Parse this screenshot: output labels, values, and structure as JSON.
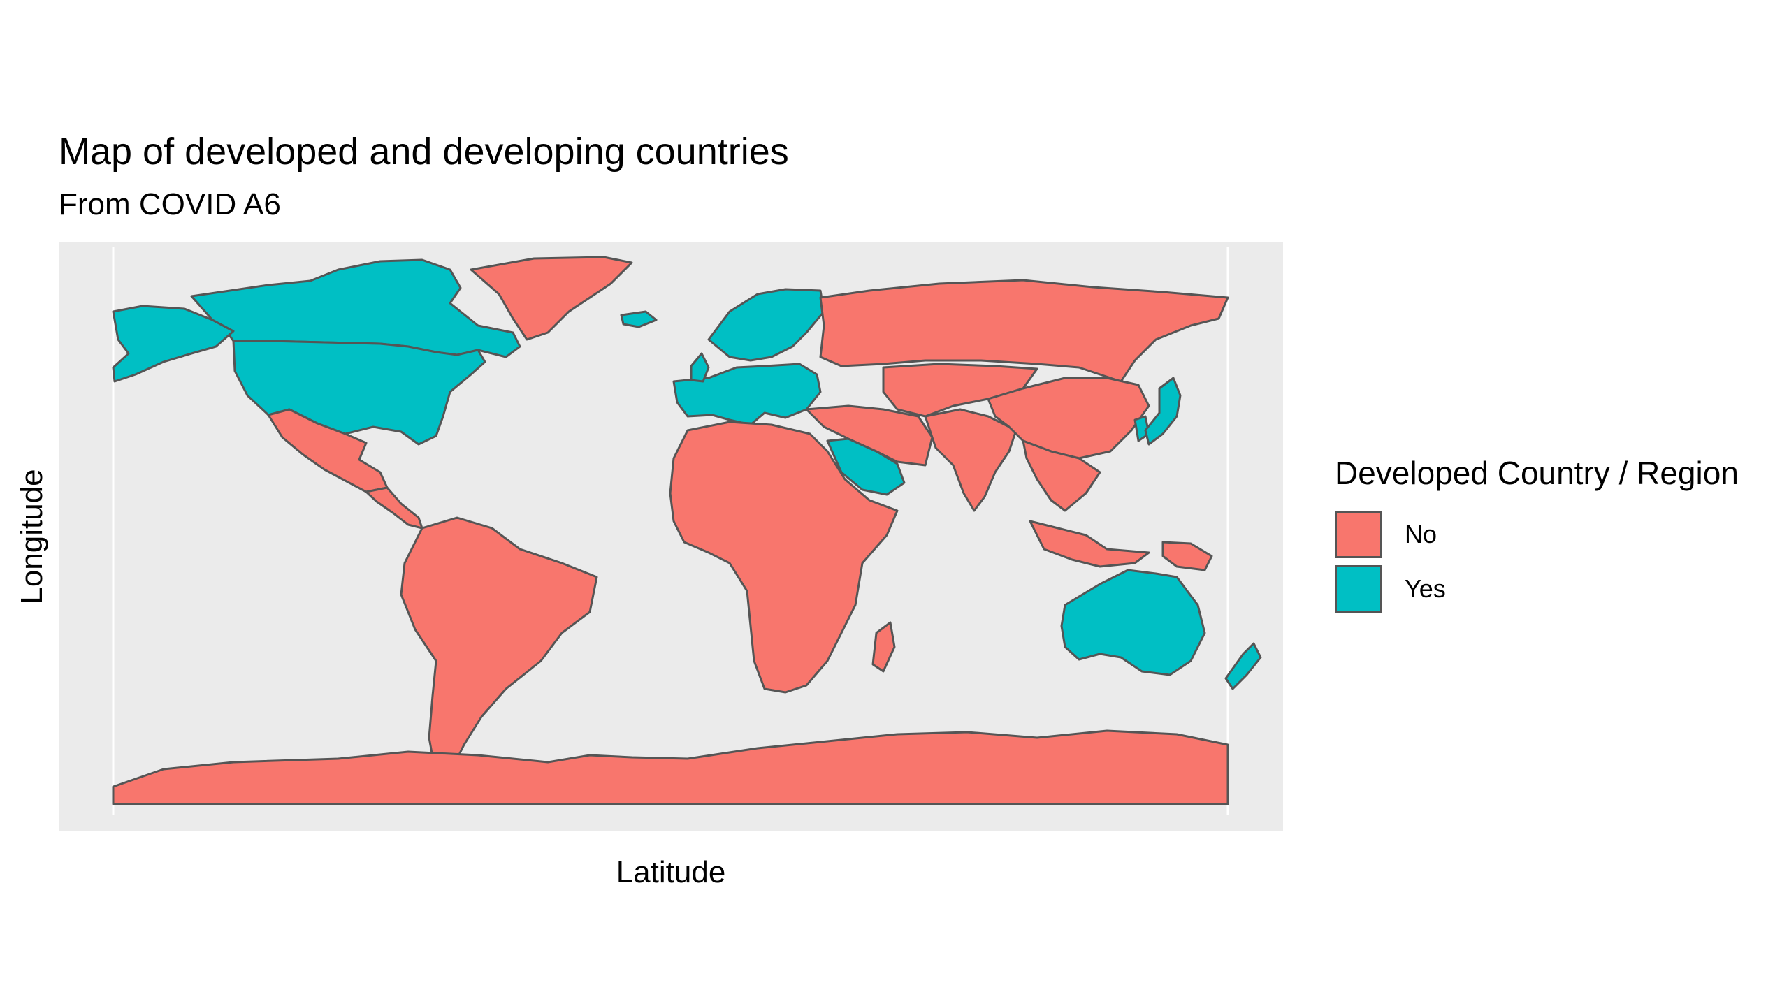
{
  "title": "Map of developed and developing countries",
  "subtitle": "From COVID A6",
  "xlabel": "Latitude",
  "ylabel": "Longitude",
  "legend": {
    "title": "Developed Country / Region",
    "placement": "right",
    "entries": [
      {
        "label": "No",
        "color": "#F8766D"
      },
      {
        "label": "Yes",
        "color": "#00BFC4"
      }
    ]
  },
  "colors": {
    "panel_background": "#EBEBEB",
    "grid": "#FFFFFF",
    "border": "#555555"
  },
  "chart_data": {
    "type": "choropleth",
    "fill_variable": "Developed Country / Region",
    "regions": [
      {
        "name": "Canada",
        "developed": "Yes"
      },
      {
        "name": "United States",
        "developed": "Yes"
      },
      {
        "name": "Alaska",
        "developed": "Yes"
      },
      {
        "name": "Greenland",
        "developed": "No"
      },
      {
        "name": "Mexico",
        "developed": "No"
      },
      {
        "name": "Central America",
        "developed": "No"
      },
      {
        "name": "South America",
        "developed": "No"
      },
      {
        "name": "Western Europe",
        "developed": "Yes"
      },
      {
        "name": "Scandinavia",
        "developed": "Yes"
      },
      {
        "name": "Iceland",
        "developed": "Yes"
      },
      {
        "name": "United Kingdom",
        "developed": "Yes"
      },
      {
        "name": "Russia",
        "developed": "No"
      },
      {
        "name": "Africa",
        "developed": "No"
      },
      {
        "name": "Madagascar",
        "developed": "No"
      },
      {
        "name": "Saudi Arabia",
        "developed": "Yes"
      },
      {
        "name": "Middle East",
        "developed": "No"
      },
      {
        "name": "India",
        "developed": "No"
      },
      {
        "name": "Central Asia",
        "developed": "No"
      },
      {
        "name": "China",
        "developed": "No"
      },
      {
        "name": "South Korea",
        "developed": "Yes"
      },
      {
        "name": "Japan",
        "developed": "Yes"
      },
      {
        "name": "Southeast Asia",
        "developed": "No"
      },
      {
        "name": "Indonesia",
        "developed": "No"
      },
      {
        "name": "Papua New Guinea",
        "developed": "No"
      },
      {
        "name": "Australia",
        "developed": "Yes"
      },
      {
        "name": "New Zealand",
        "developed": "Yes"
      },
      {
        "name": "Antarctica",
        "developed": "No"
      }
    ]
  }
}
